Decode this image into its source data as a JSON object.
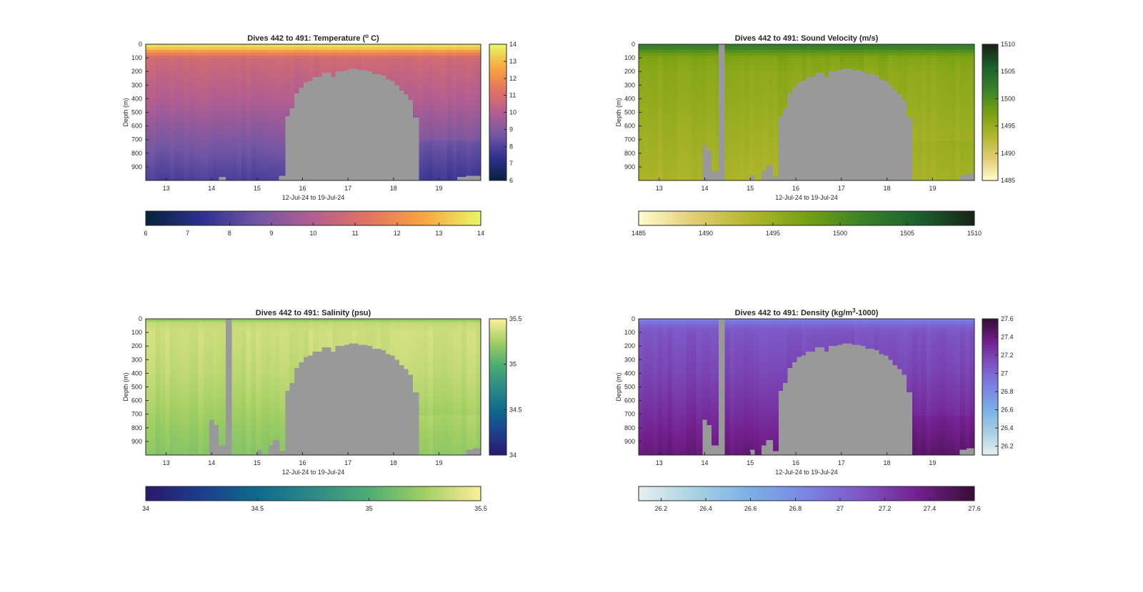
{
  "chart_data": [
    {
      "id": "temperature",
      "type": "heatmap",
      "title": "Dives 442 to 491: Temperature (° C)",
      "title_parts": [
        "Dives 442 to 491: Temperature (",
        "o",
        " C)"
      ],
      "xlabel": "12-Jul-24 to 19-Jul-24",
      "ylabel": "Depth (m)",
      "x_range": [
        12.55,
        19.92
      ],
      "x_ticks": [
        13,
        14,
        15,
        16,
        17,
        18,
        19
      ],
      "y_range": [
        0,
        1000
      ],
      "y_reversed": true,
      "y_ticks": [
        0,
        100,
        200,
        300,
        400,
        500,
        600,
        700,
        800,
        900
      ],
      "colormap": "thermal",
      "colormap_stops": [
        "#04233b",
        "#2e2f8f",
        "#7156a5",
        "#b35e90",
        "#e37361",
        "#f9a640",
        "#e8f766"
      ],
      "nodata_color": "#999999",
      "c_range": [
        6,
        14
      ],
      "colorbar_vertical_ticks": [
        6,
        7,
        8,
        9,
        10,
        11,
        12,
        13,
        14
      ],
      "colorbar_horizontal_ticks": [
        6,
        7,
        8,
        9,
        10,
        11,
        12,
        13,
        14
      ],
      "profile_values": {
        "depth": [
          0,
          30,
          60,
          100,
          200,
          400,
          600,
          800,
          1000
        ],
        "value": [
          13.8,
          13.2,
          12.0,
          10.8,
          10.5,
          10.0,
          9.3,
          8.6,
          7.9
        ]
      },
      "cross_stripe": null,
      "bottom_notches": "temp"
    },
    {
      "id": "sound_velocity",
      "type": "heatmap",
      "title": "Dives 442 to 491: Sound Velocity (m/s)",
      "title_parts": [
        "Dives 442 to 491: Sound Velocity (m/s)"
      ],
      "xlabel": "12-Jul-24 to 19-Jul-24",
      "ylabel": "Depth (m)",
      "x_range": [
        12.55,
        19.92
      ],
      "x_ticks": [
        13,
        14,
        15,
        16,
        17,
        18,
        19
      ],
      "y_range": [
        0,
        1000
      ],
      "y_reversed": true,
      "y_ticks": [
        0,
        100,
        200,
        300,
        400,
        500,
        600,
        700,
        800,
        900
      ],
      "colormap": "speed",
      "colormap_stops": [
        "#fffdce",
        "#e1cc73",
        "#b1b62b",
        "#77a012",
        "#3a8227",
        "#1b612f",
        "#172313"
      ],
      "nodata_color": "#999999",
      "c_range": [
        1485,
        1510
      ],
      "colorbar_vertical_ticks": [
        1485,
        1490,
        1495,
        1500,
        1505,
        1510
      ],
      "colorbar_horizontal_ticks": [
        1485,
        1490,
        1495,
        1500,
        1505,
        1510
      ],
      "profile_values": {
        "depth": [
          0,
          30,
          60,
          100,
          200,
          400,
          600,
          800,
          1000
        ],
        "value": [
          1502.5,
          1501.5,
          1499.0,
          1496.8,
          1496.0,
          1495.5,
          1494.8,
          1494.2,
          1493.6
        ]
      },
      "cross_stripe": [
        14.31,
        14.44
      ],
      "bottom_notches": "sv"
    },
    {
      "id": "salinity",
      "type": "heatmap",
      "title": "Dives 442 to 491: Salinity (psu)",
      "title_parts": [
        "Dives 442 to 491: Salinity (psu)"
      ],
      "xlabel": "12-Jul-24 to 19-Jul-24",
      "ylabel": "Depth (m)",
      "x_range": [
        12.55,
        19.92
      ],
      "x_ticks": [
        13,
        14,
        15,
        16,
        17,
        18,
        19
      ],
      "y_range": [
        0,
        1000
      ],
      "y_reversed": true,
      "y_ticks": [
        0,
        100,
        200,
        300,
        400,
        500,
        600,
        700,
        800,
        900
      ],
      "colormap": "haline",
      "colormap_stops": [
        "#2a186c",
        "#1d3e8e",
        "#0e6a8c",
        "#2d8a88",
        "#4fad73",
        "#a2cf63",
        "#fdee99"
      ],
      "nodata_color": "#999999",
      "c_range": [
        34,
        35.5
      ],
      "colorbar_vertical_ticks": [
        34,
        34.5,
        35,
        35.5
      ],
      "colorbar_horizontal_ticks": [
        34,
        34.5,
        35,
        35.5
      ],
      "profile_values": {
        "depth": [
          0,
          20,
          60,
          100,
          200,
          400,
          600,
          800,
          1000
        ],
        "value": [
          35.12,
          35.32,
          35.36,
          35.37,
          35.36,
          35.33,
          35.28,
          35.22,
          35.17
        ]
      },
      "cross_stripe": [
        14.31,
        14.44
      ],
      "bottom_notches": "sv"
    },
    {
      "id": "density",
      "type": "heatmap",
      "title": "Dives 442 to 491: Density (kg/m³-1000)",
      "title_parts": [
        "Dives 442 to 491: Density (kg/m",
        "3",
        "-1000)"
      ],
      "xlabel": "12-Jul-24 to 19-Jul-24",
      "ylabel": "Depth (m)",
      "x_range": [
        12.55,
        19.92
      ],
      "x_ticks": [
        13,
        14,
        15,
        16,
        17,
        18,
        19
      ],
      "y_range": [
        0,
        1000
      ],
      "y_reversed": true,
      "y_ticks": [
        0,
        100,
        200,
        300,
        400,
        500,
        600,
        700,
        800,
        900
      ],
      "colormap": "dense",
      "colormap_stops": [
        "#e6f0f0",
        "#a9d1e2",
        "#7ab0e6",
        "#7c83e3",
        "#7d55c4",
        "#731f8e",
        "#360d35"
      ],
      "nodata_color": "#999999",
      "c_range": [
        26.1,
        27.6
      ],
      "colorbar_vertical_ticks": [
        26.2,
        26.4,
        26.6,
        26.8,
        27,
        27.2,
        27.4,
        27.6
      ],
      "colorbar_horizontal_ticks": [
        26.2,
        26.4,
        26.6,
        26.8,
        27,
        27.2,
        27.4,
        27.6
      ],
      "profile_values": {
        "depth": [
          0,
          30,
          60,
          100,
          200,
          400,
          600,
          800,
          1000
        ],
        "value": [
          26.85,
          26.95,
          27.05,
          27.1,
          27.13,
          27.18,
          27.25,
          27.33,
          27.42
        ]
      },
      "cross_stripe": [
        14.31,
        14.44
      ],
      "bottom_notches": "sv"
    }
  ],
  "gap_profile": {
    "x": [
      15.5,
      15.62,
      15.72,
      15.82,
      15.92,
      16.02,
      16.12,
      16.22,
      16.32,
      16.42,
      16.52,
      16.62,
      16.72,
      16.82,
      16.92,
      17.02,
      17.12,
      17.22,
      17.32,
      17.42,
      17.52,
      17.62,
      17.72,
      17.82,
      17.92,
      18.02,
      18.12,
      18.22,
      18.32,
      18.42,
      18.55
    ],
    "top_depth": [
      970,
      530,
      470,
      360,
      320,
      280,
      270,
      240,
      240,
      210,
      210,
      240,
      200,
      200,
      190,
      180,
      180,
      190,
      190,
      200,
      220,
      220,
      230,
      260,
      270,
      300,
      340,
      370,
      410,
      540,
      1000
    ]
  }
}
